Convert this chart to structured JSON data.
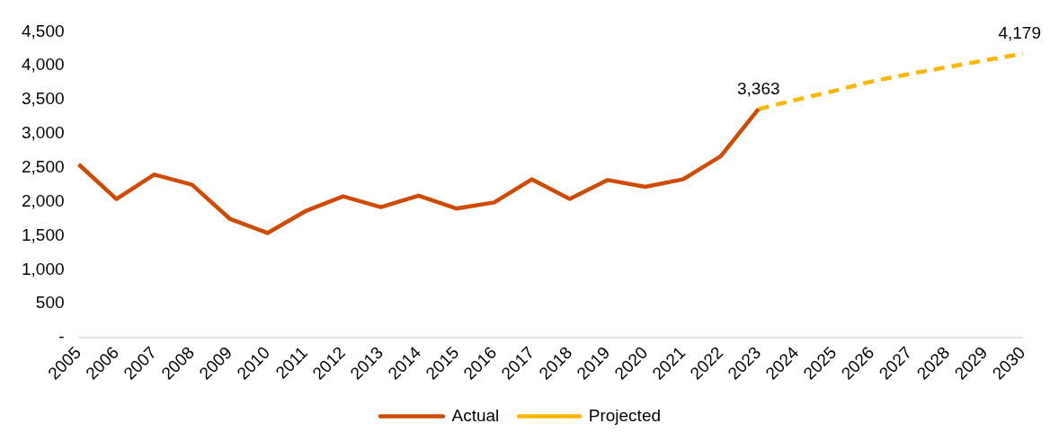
{
  "chart_data": {
    "type": "line",
    "categories": [
      "2005",
      "2006",
      "2007",
      "2008",
      "2009",
      "2010",
      "2011",
      "2012",
      "2013",
      "2014",
      "2015",
      "2016",
      "2017",
      "2018",
      "2019",
      "2020",
      "2021",
      "2022",
      "2023",
      "2024",
      "2025",
      "2026",
      "2027",
      "2028",
      "2029",
      "2030"
    ],
    "series": [
      {
        "name": "Actual",
        "color": "#d04a02",
        "line_style": "solid",
        "values": [
          2550,
          2040,
          2400,
          2250,
          1750,
          1540,
          1860,
          2080,
          1920,
          2090,
          1900,
          1990,
          2330,
          2040,
          2320,
          2220,
          2330,
          2670,
          3363,
          null,
          null,
          null,
          null,
          null,
          null,
          null
        ]
      },
      {
        "name": "Projected",
        "color": "#ffb600",
        "line_style": "dashed",
        "values": [
          null,
          null,
          null,
          null,
          null,
          null,
          null,
          null,
          null,
          null,
          null,
          null,
          null,
          null,
          null,
          null,
          null,
          null,
          3363,
          3500,
          3630,
          3770,
          3880,
          3980,
          4080,
          4179
        ]
      }
    ],
    "ylim": [
      0,
      4500
    ],
    "yticks": [
      {
        "value": 0,
        "label": "-"
      },
      500,
      {
        "value": 1000,
        "label": "1,000"
      },
      {
        "value": 1500,
        "label": "1,500"
      },
      {
        "value": 2000,
        "label": "2,000"
      },
      {
        "value": 2500,
        "label": "2,500"
      },
      {
        "value": 3000,
        "label": "3,000"
      },
      {
        "value": 3500,
        "label": "3,500"
      },
      {
        "value": 4000,
        "label": "4,000"
      },
      {
        "value": 4500,
        "label": "4,500"
      }
    ],
    "annotations": [
      {
        "text": "3,363",
        "x": "2023",
        "y": 3363
      },
      {
        "text": "4,179",
        "x": "2030",
        "y": 4179
      }
    ],
    "legend": "bottom",
    "marker": "none",
    "grid": false
  }
}
